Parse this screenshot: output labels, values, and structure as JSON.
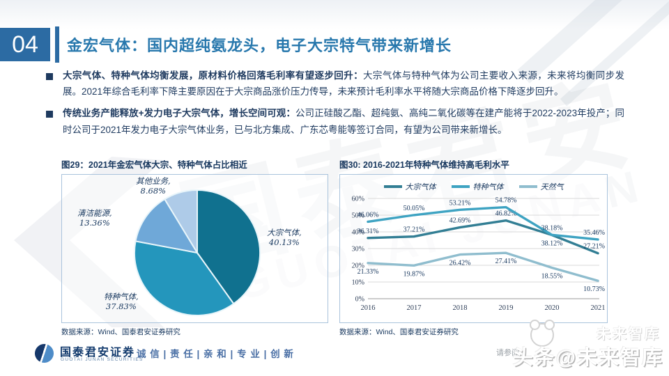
{
  "slide": {
    "number": "04",
    "title": "金宏气体：国内超纯氨龙头，电子大宗特气带来新增长",
    "accent_color": "#2878AD"
  },
  "bullets": [
    {
      "lead": "大宗气体、特种气体均衡发展，原材料价格回落毛利率有望逐步回升：",
      "text": "大宗气体与特种气体为公司主要收入来源，未来将均衡同步发展。2021年综合毛利率下降主要原因在于大宗商品涨价压力传导，未来预计毛利率水平将随大宗商品价格下降逐步回升。"
    },
    {
      "lead": "传统业务产能释放+发力电子大宗气体，增长空间可观：",
      "text": "公司正硅酸乙酯、超纯氨、高纯二氧化碳等在建产能将于2022-2023年投产；同时公司于2021年发力电子大宗气体业务，已与北方集成、广东芯粤能等签订合同，有望为公司带来新增长。"
    }
  ],
  "chart_data": [
    {
      "type": "pie",
      "title": "图29：2021年金宏气体大宗、特种气体占比相近",
      "labels": [
        "大宗气体",
        "特种气体",
        "清洁能源",
        "其他业务"
      ],
      "values": [
        40.13,
        37.83,
        13.36,
        8.68
      ],
      "colors": [
        "#10718F",
        "#2496BC",
        "#6FA8D8",
        "#AECBE8"
      ],
      "start_angle_deg": 0,
      "direction": "clockwise",
      "source": "数据来源：Wind、国泰君安证券研究"
    },
    {
      "type": "line",
      "title": "图30: 2016-2021年特种气体维持高毛利水平",
      "categories": [
        "2016",
        "2017",
        "2018",
        "2019",
        "2020",
        "2021"
      ],
      "series": [
        {
          "name": "大宗气体",
          "color": "#327E94",
          "values": [
            36.31,
            37.21,
            42.69,
            46.82,
            38.12,
            27.21
          ],
          "label_pos": [
            "above",
            "above",
            "above",
            "above",
            "below",
            "above"
          ]
        },
        {
          "name": "特种气体",
          "color": "#3EA3C2",
          "values": [
            46.06,
            50.05,
            53.21,
            54.78,
            38.18,
            35.46
          ],
          "label_pos": [
            "above",
            "above",
            "above",
            "above",
            "above",
            "above"
          ]
        },
        {
          "name": "天然气",
          "color": "#8FBDCE",
          "values": [
            21.33,
            19.87,
            26.42,
            27.41,
            18.55,
            10.73
          ],
          "label_pos": [
            "below",
            "below",
            "below",
            "below",
            "below",
            "below"
          ]
        }
      ],
      "ylim": [
        0,
        60
      ],
      "ytick_step": 10,
      "ytick_suffix": "%",
      "grid": true,
      "legend_position": "top",
      "source": "数据来源：Wind、国泰君安证券研究"
    }
  ],
  "footer": {
    "brand_name": "国泰君安证券",
    "brand_sub": "GUOTAI JUNAN SECURITIES",
    "slogan": "诚 信 | 责 任 | 亲 和 | 专 业 | 创 新",
    "disclaimer": "请参阅"
  },
  "watermarks": {
    "center_cn": "国泰君安",
    "center_en": "GUOTAI JUNAN",
    "ghost_text": "未来智库",
    "big_text": "头条@未来智库"
  }
}
